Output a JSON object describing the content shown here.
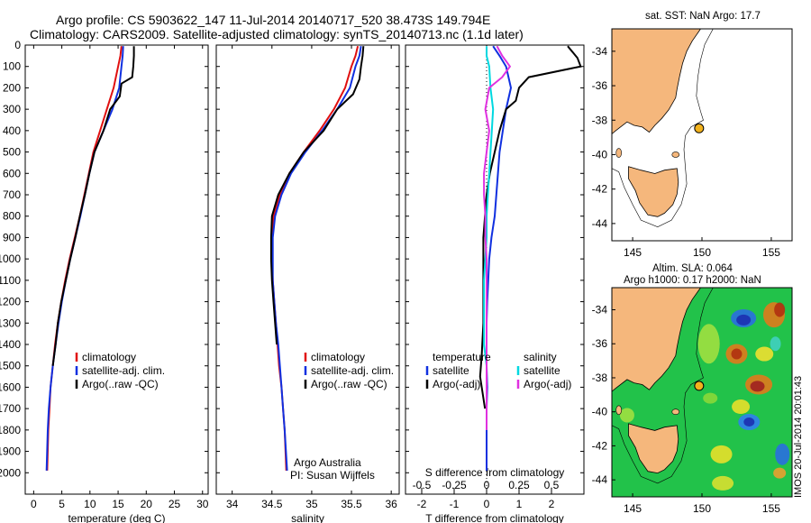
{
  "header": {
    "line1": "Argo profile: CS 5903622_147 11-Jul-2014 20140717_520 38.473S 149.794E",
    "line2": "Climatology: CARS2009. Satellite-adjusted climatology: synTS_20140713.nc (1.1d later)"
  },
  "side_label": "IMOS 20-Jul-2014 20:01:43",
  "map_top": {
    "title": "sat. SST: NaN Argo: 17.7",
    "x_ticks": [
      "145",
      "150",
      "155"
    ],
    "y_ticks": [
      "-34",
      "-36",
      "-38",
      "-40",
      "-42",
      "-44"
    ],
    "xlim": [
      143.5,
      156.5
    ],
    "ylim": [
      -45,
      -32.7
    ],
    "argo_lon": 149.794,
    "argo_lat": -38.473,
    "colors": {
      "land": "#f5b77c",
      "sea": "#ffffff",
      "marker": "#f2b21d"
    }
  },
  "map_bottom": {
    "title1": "Altim. SLA: 0.064",
    "title2": "Argo h1000: 0.17 h2000: NaN",
    "x_ticks": [
      "145",
      "150",
      "155"
    ],
    "y_ticks": [
      "-34",
      "-36",
      "-38",
      "-40",
      "-42",
      "-44"
    ],
    "xlim": [
      143.5,
      156.5
    ],
    "ylim": [
      -45,
      -32.7
    ],
    "argo_lon": 149.794,
    "argo_lat": -38.473,
    "colors": {
      "land": "#f5b77c",
      "sea_base": "#22c24a",
      "marker": "#f2b21d"
    }
  },
  "chart_data": [
    {
      "type": "line",
      "xlabel": "temperature (deg C)",
      "ylabel": "",
      "xlim": [
        -1.5,
        31
      ],
      "ylim": [
        0,
        2100
      ],
      "y_reversed": true,
      "x_ticks": [
        0,
        5,
        10,
        15,
        20,
        25,
        30
      ],
      "y_ticks": [
        0,
        100,
        200,
        300,
        400,
        500,
        600,
        700,
        800,
        900,
        1000,
        1100,
        1200,
        1300,
        1400,
        1500,
        1600,
        1700,
        1800,
        1900,
        2000
      ],
      "legend": [
        "climatology",
        "satellite-adj. clim.",
        "Argo(..raw -QC)"
      ],
      "series": [
        {
          "name": "climatology",
          "color": "#e01010",
          "x": [
            15.6,
            15.4,
            15.0,
            14.2,
            13.0,
            11.8,
            10.6,
            9.8,
            9.0,
            8.2,
            7.3,
            6.4,
            5.6,
            4.9,
            4.3,
            3.8,
            3.4,
            3.0,
            2.8,
            2.6,
            2.4
          ],
          "y": [
            5,
            50,
            100,
            200,
            300,
            400,
            500,
            600,
            700,
            800,
            900,
            1000,
            1100,
            1200,
            1300,
            1400,
            1500,
            1600,
            1700,
            1800,
            1990
          ]
        },
        {
          "name": "satellite-adj. clim.",
          "color": "#1030e0",
          "x": [
            15.9,
            15.8,
            15.6,
            15.2,
            14.0,
            12.4,
            10.8,
            9.9,
            9.1,
            8.3,
            7.4,
            6.5,
            5.7,
            5.0,
            4.4,
            3.9,
            3.4,
            3.0,
            2.7,
            2.5,
            2.3
          ],
          "y": [
            5,
            50,
            100,
            200,
            300,
            400,
            500,
            600,
            700,
            800,
            900,
            1000,
            1100,
            1200,
            1300,
            1400,
            1500,
            1600,
            1700,
            1800,
            1990
          ]
        },
        {
          "name": "Argo(..raw -QC)",
          "color": "#000000",
          "x": [
            17.8,
            17.8,
            17.7,
            17.5,
            15.6,
            15.3,
            13.6,
            12.4,
            10.8,
            9.9,
            9.1,
            8.2,
            7.4,
            6.5,
            5.7,
            4.9,
            4.3,
            3.9,
            3.4
          ],
          "y": [
            5,
            50,
            100,
            150,
            180,
            240,
            300,
            400,
            500,
            600,
            700,
            800,
            900,
            1000,
            1100,
            1200,
            1300,
            1400,
            1500
          ]
        }
      ]
    },
    {
      "type": "line",
      "xlabel": "salinity",
      "ylabel": "",
      "xlim": [
        33.8,
        36.1
      ],
      "ylim": [
        0,
        2100
      ],
      "y_reversed": true,
      "x_ticks": [
        34,
        34.5,
        35,
        35.5,
        36
      ],
      "legend": [
        "climatology",
        "satellite-adj. clim.",
        "Argo(..raw -QC)"
      ],
      "annotation": [
        "Argo Australia",
        "PI: Susan Wijffels"
      ],
      "series": [
        {
          "name": "climatology",
          "color": "#e01010",
          "x": [
            35.58,
            35.55,
            35.5,
            35.42,
            35.28,
            35.1,
            34.9,
            34.72,
            34.6,
            34.52,
            34.5,
            34.5,
            34.51,
            34.53,
            34.55,
            34.57,
            34.59,
            34.62,
            34.64,
            34.66,
            34.68
          ],
          "y": [
            5,
            50,
            100,
            200,
            300,
            400,
            500,
            600,
            700,
            800,
            900,
            1000,
            1100,
            1200,
            1300,
            1400,
            1500,
            1600,
            1700,
            1800,
            1990
          ]
        },
        {
          "name": "satellite-adj. clim.",
          "color": "#1030e0",
          "x": [
            35.62,
            35.6,
            35.55,
            35.48,
            35.32,
            35.13,
            34.92,
            34.74,
            34.62,
            34.54,
            34.51,
            34.51,
            34.51,
            34.53,
            34.55,
            34.58,
            34.6,
            34.62,
            34.64,
            34.66,
            34.69
          ],
          "y": [
            5,
            50,
            100,
            200,
            300,
            400,
            500,
            600,
            700,
            800,
            900,
            1000,
            1100,
            1200,
            1300,
            1400,
            1500,
            1600,
            1700,
            1800,
            1990
          ]
        },
        {
          "name": "Argo(..raw -QC)",
          "color": "#000000",
          "x": [
            35.65,
            35.64,
            35.62,
            35.6,
            35.52,
            35.32,
            35.15,
            34.9,
            34.72,
            34.58,
            34.5,
            34.49,
            34.49,
            34.5,
            34.52,
            34.54,
            34.56
          ],
          "y": [
            5,
            50,
            100,
            160,
            230,
            300,
            400,
            500,
            600,
            700,
            800,
            900,
            1000,
            1100,
            1200,
            1300,
            1400
          ]
        }
      ]
    },
    {
      "type": "line",
      "xlabel": "T difference from climatology",
      "x2label": "S difference from climatology",
      "xlim": [
        -2.5,
        3
      ],
      "x2lim": [
        -0.625,
        0.75
      ],
      "ylim": [
        0,
        2100
      ],
      "y_reversed": true,
      "x_ticks": [
        -2,
        -1,
        0,
        1,
        2
      ],
      "x2_ticks": [
        "-0.5",
        "-0.25",
        "0",
        "0.25",
        "0.5"
      ],
      "legend_temperature": [
        "temperature",
        "satellite",
        "Argo(-adj)"
      ],
      "legend_salinity": [
        "salinity",
        "satellite",
        "Argo(-adj)"
      ],
      "series": [
        {
          "name": "satellite",
          "color": "#1030e0",
          "units": "T",
          "x": [
            0.2,
            0.4,
            0.6,
            0.75,
            0.6,
            0.5,
            0.4,
            0.35,
            0.3,
            0.25,
            0.15,
            0.08,
            0.05,
            0.02,
            0.0,
            0.0,
            0.0,
            0.02,
            0.0,
            0.0,
            0.0
          ],
          "y": [
            5,
            50,
            100,
            200,
            300,
            400,
            500,
            600,
            700,
            800,
            900,
            1000,
            1100,
            1200,
            1300,
            1400,
            1500,
            1600,
            1700,
            1800,
            1990
          ]
        },
        {
          "name": "Argo(-adj)",
          "color": "#000000",
          "units": "T",
          "x": [
            2.5,
            2.8,
            2.9,
            1.3,
            1.0,
            0.9,
            0.6,
            0.4,
            0.25,
            0.1,
            0.0,
            -0.05,
            -0.1,
            -0.1,
            -0.1,
            -0.15,
            -0.2,
            -0.05
          ],
          "y": [
            5,
            60,
            100,
            150,
            200,
            260,
            300,
            400,
            500,
            600,
            700,
            800,
            900,
            1100,
            1300,
            1450,
            1550,
            1700
          ]
        },
        {
          "name": "satellite",
          "color": "#00d8e0",
          "units": "S",
          "x": [
            0.0,
            0.0,
            0.02,
            0.03,
            0.05,
            0.04,
            0.03,
            0.02,
            0.01,
            0.0,
            0.0,
            -0.01,
            -0.02,
            -0.02,
            -0.02,
            0.0,
            0.0,
            0.0,
            0.0
          ],
          "y": [
            5,
            50,
            100,
            200,
            300,
            400,
            500,
            600,
            700,
            800,
            900,
            1000,
            1100,
            1200,
            1400,
            1500,
            1600,
            1700,
            1800
          ]
        },
        {
          "name": "Argo(-adj)",
          "color": "#e030e0",
          "units": "S",
          "x": [
            0.08,
            0.12,
            0.18,
            0.12,
            0.02,
            -0.01,
            0.02,
            0.0,
            -0.02,
            -0.02,
            -0.01,
            -0.01,
            0.0,
            0.0,
            0.0
          ],
          "y": [
            5,
            50,
            100,
            150,
            200,
            300,
            400,
            500,
            600,
            700,
            800,
            900,
            1000,
            1300,
            1800
          ]
        }
      ]
    }
  ]
}
